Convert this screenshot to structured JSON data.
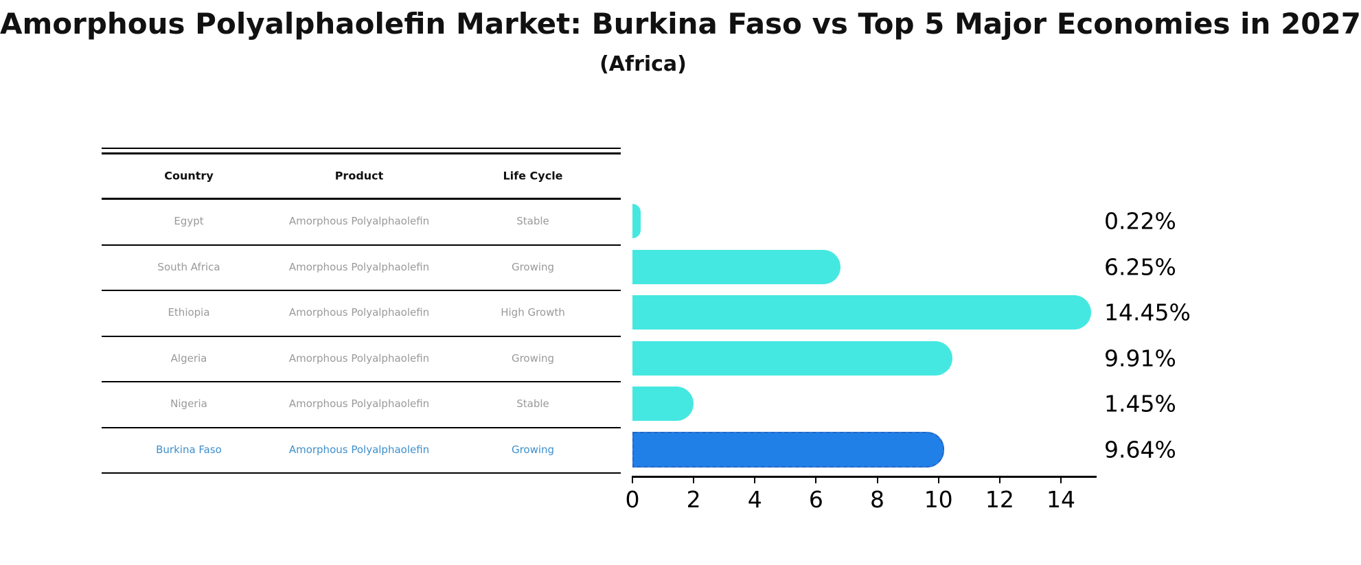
{
  "title": "Amorphous Polyalphaolefin Market: Burkina Faso vs Top 5 Major Economies in 2027",
  "subtitle": "(Africa)",
  "table": {
    "headers": [
      "Country",
      "Product",
      "Life Cycle"
    ],
    "rows": [
      {
        "country": "Egypt",
        "product": "Amorphous Polyalphaolefin",
        "life_cycle": "Stable",
        "highlight": false
      },
      {
        "country": "South Africa",
        "product": "Amorphous Polyalphaolefin",
        "life_cycle": "Growing",
        "highlight": false
      },
      {
        "country": "Ethiopia",
        "product": "Amorphous Polyalphaolefin",
        "life_cycle": "High Growth",
        "highlight": false
      },
      {
        "country": "Algeria",
        "product": "Amorphous Polyalphaolefin",
        "life_cycle": "Growing",
        "highlight": false
      },
      {
        "country": "Nigeria",
        "product": "Amorphous Polyalphaolefin",
        "life_cycle": "Stable",
        "highlight": false
      },
      {
        "country": "Burkina Faso",
        "product": "Amorphous Polyalphaolefin",
        "life_cycle": "Growing",
        "highlight": true
      }
    ]
  },
  "chart_data": {
    "type": "bar",
    "orientation": "horizontal",
    "title": "Amorphous Polyalphaolefin Market: Burkina Faso vs Top 5 Major Economies in 2027",
    "subtitle": "(Africa)",
    "categories": [
      "Egypt",
      "South Africa",
      "Ethiopia",
      "Algeria",
      "Nigeria",
      "Burkina Faso"
    ],
    "values": [
      0.22,
      6.25,
      14.45,
      9.91,
      1.45,
      9.64
    ],
    "value_labels": [
      "0.22%",
      "6.25%",
      "14.45%",
      "9.91%",
      "1.45%",
      "9.64%"
    ],
    "x_ticks": [
      "0",
      "2",
      "4",
      "6",
      "8",
      "10",
      "12",
      "14"
    ],
    "x_tick_values": [
      0,
      2,
      4,
      6,
      8,
      10,
      12,
      14
    ],
    "xlim": [
      0,
      15.2
    ],
    "highlight_index": 5,
    "grid": false,
    "legend": false
  },
  "colors": {
    "bar": "#45E8E1",
    "highlight_bar": "#2080E8",
    "highlight_border": "#2A64C0",
    "highlight_text": "#3E8FCC",
    "row_text": "#999999",
    "header_text": "#111111",
    "axis": "#000000",
    "value_label": "#000000",
    "background": "#FFFFFF"
  }
}
